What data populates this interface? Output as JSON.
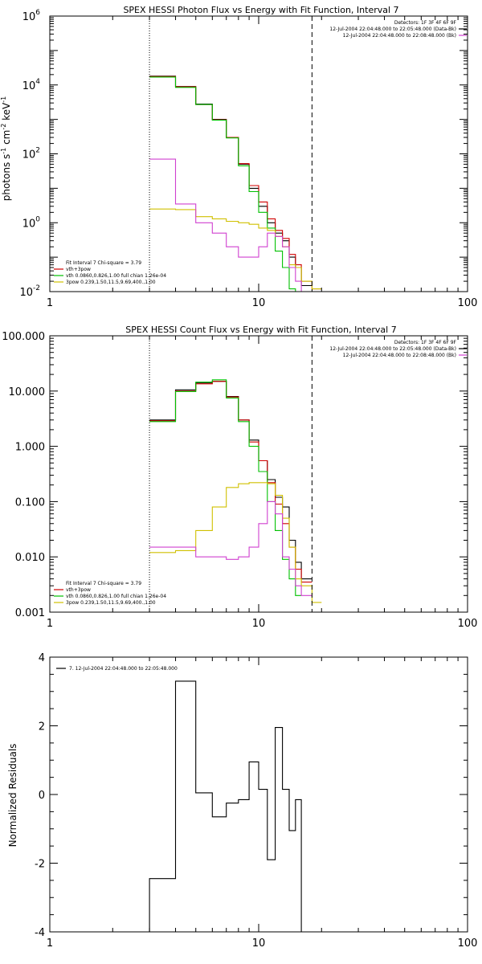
{
  "chart_data": [
    {
      "type": "line",
      "title": "SPEX HESSI Photon Flux vs Energy with Fit Function, Interval 7",
      "xlabel": "",
      "ylabel": "photons s",
      "ylabel_units": [
        "-1",
        " cm",
        "-2",
        " keV",
        "-1"
      ],
      "xscale": "log",
      "yscale": "log",
      "xlim": [
        1,
        100
      ],
      "ylim": [
        0.01,
        1000000
      ],
      "xticks": [
        1,
        10,
        100
      ],
      "xtick_labels": [
        "1",
        "10",
        "100"
      ],
      "yticks": [
        0.01,
        1,
        100,
        10000,
        1000000
      ],
      "ytick_labels": [
        [
          "10",
          "-2"
        ],
        [
          "10",
          "0"
        ],
        [
          "10",
          "2"
        ],
        [
          "10",
          "4"
        ],
        [
          "10",
          "6"
        ]
      ],
      "vlines": [
        {
          "x": 3,
          "style": "dotted"
        },
        {
          "x": 18,
          "style": "dashed"
        }
      ],
      "legend_topright": [
        "Detectors: 1F 3F 4F 6F 9F",
        "12-Jul-2004 22:04:48.000 to 22:05:48.000 (Data-Bk)",
        "12-Jul-2004 22:04:48.000 to 22:08:48.000 (Bk)"
      ],
      "legend_topright_colors": [
        "#000000",
        "#000000",
        "#d040d0"
      ],
      "legend_bottomleft": [
        "Fit Interval  7    Chi-square = 3.79",
        "vth+3pow",
        "vth 0.0860,0.826,1.00  full chian 1.26e-04",
        "3pow 0.239,1.50,11.5,9.69,400.,1.00"
      ],
      "legend_bottomleft_colors": [
        "#000000",
        "#d00000",
        "#00c000",
        "#d0c000"
      ],
      "bin_edges": [
        3,
        4,
        5,
        6,
        7,
        8,
        9,
        10,
        11,
        12,
        13,
        14,
        15,
        16,
        18,
        20
      ],
      "series": [
        {
          "color": "#000000",
          "values": [
            18000,
            9000,
            2800,
            1000,
            300,
            50,
            10,
            3,
            1,
            0.5,
            0.3,
            0.1,
            0.05,
            0.015,
            null
          ]
        },
        {
          "color": "#d00000",
          "values": [
            17500,
            8800,
            2700,
            980,
            300,
            52,
            12,
            4,
            1.3,
            0.6,
            0.35,
            0.12,
            0.06,
            0.02,
            0.012
          ]
        },
        {
          "color": "#00c000",
          "values": [
            17000,
            8500,
            2700,
            950,
            290,
            45,
            8,
            2,
            0.7,
            0.15,
            0.05,
            0.012,
            0.006,
            null,
            null
          ]
        },
        {
          "color": "#d0c000",
          "values": [
            2.5,
            2.4,
            1.5,
            1.3,
            1.1,
            1.0,
            0.9,
            0.7,
            0.6,
            0.4,
            0.2,
            0.06,
            0.05,
            0.02,
            0.012
          ]
        },
        {
          "color": "#d040d0",
          "values": [
            70,
            3.5,
            1.0,
            0.5,
            0.2,
            0.1,
            0.1,
            0.2,
            0.5,
            0.4,
            0.2,
            0.05,
            0.02,
            0.01,
            null
          ]
        }
      ]
    },
    {
      "type": "line",
      "title": "SPEX HESSI Count Flux vs Energy with Fit Function, Interval 7",
      "xlabel": "",
      "ylabel": "",
      "xscale": "log",
      "yscale": "log",
      "xlim": [
        1,
        100
      ],
      "ylim": [
        0.001,
        100
      ],
      "xticks": [
        1,
        10,
        100
      ],
      "xtick_labels": [
        "1",
        "10",
        "100"
      ],
      "yticks": [
        0.001,
        0.01,
        0.1,
        1,
        10,
        100
      ],
      "ytick_labels": [
        "0.001",
        "0.010",
        "0.100",
        "1.000",
        "10.000",
        "100.000"
      ],
      "vlines": [
        {
          "x": 3,
          "style": "dotted"
        },
        {
          "x": 18,
          "style": "dashed"
        }
      ],
      "legend_topright": [
        "Detectors: 1F 3F 4F 6F 9F",
        "12-Jul-2004 22:04:48.000 to 22:05:48.000 (Data-Bk)",
        "12-Jul-2004 22:04:48.000 to 22:08:48.000 (Bk)"
      ],
      "legend_topright_colors": [
        "#000000",
        "#000000",
        "#d040d0"
      ],
      "legend_bottomleft": [
        "Fit Interval  7    Chi-square = 3.79",
        "vth+3pow",
        "vth 0.0860,0.826,1.00  full chian 1.26e-04",
        "3pow 0.239,1.50,11.5,9.69,400.,1.00"
      ],
      "legend_bottomleft_colors": [
        "#000000",
        "#d00000",
        "#00c000",
        "#d0c000"
      ],
      "bin_edges": [
        3,
        4,
        5,
        6,
        7,
        8,
        9,
        10,
        11,
        12,
        13,
        14,
        15,
        16,
        18,
        20
      ],
      "series": [
        {
          "color": "#000000",
          "values": [
            3.0,
            10.5,
            14.0,
            15.0,
            8.0,
            3.0,
            1.3,
            0.55,
            0.25,
            0.12,
            0.08,
            0.02,
            0.008,
            0.004,
            null
          ]
        },
        {
          "color": "#d00000",
          "values": [
            2.9,
            10.0,
            13.5,
            15.0,
            7.8,
            3.0,
            1.2,
            0.55,
            0.22,
            0.09,
            0.04,
            0.015,
            0.006,
            0.0035,
            null
          ]
        },
        {
          "color": "#00c000",
          "values": [
            2.8,
            9.8,
            14.5,
            16.0,
            7.5,
            2.8,
            1.0,
            0.35,
            0.1,
            0.03,
            0.009,
            0.004,
            0.002,
            null,
            null
          ]
        },
        {
          "color": "#d0c000",
          "values": [
            0.012,
            0.013,
            0.03,
            0.08,
            0.18,
            0.21,
            0.22,
            0.22,
            0.21,
            0.13,
            0.05,
            0.015,
            0.004,
            0.003,
            0.0015
          ]
        },
        {
          "color": "#d040d0",
          "values": [
            0.015,
            0.015,
            0.01,
            0.01,
            0.009,
            0.01,
            0.015,
            0.04,
            0.1,
            0.06,
            0.01,
            0.006,
            0.003,
            0.002,
            null
          ]
        }
      ]
    },
    {
      "type": "line",
      "title": "",
      "xlabel": "",
      "ylabel": "Normalized Residuals",
      "xscale": "log",
      "yscale": "linear",
      "xlim": [
        1,
        100
      ],
      "ylim": [
        -4,
        4
      ],
      "xticks": [
        1,
        10,
        100
      ],
      "xtick_labels": [
        "1",
        "10",
        "100"
      ],
      "yticks": [
        -4,
        -2,
        0,
        2,
        4
      ],
      "ytick_labels": [
        "-4",
        "-2",
        "0",
        "2",
        "4"
      ],
      "legend": [
        "7. 12-Jul-2004 22:04:48.000 to 22:05:48.000"
      ],
      "bin_edges": [
        3,
        4,
        5,
        6,
        7,
        8,
        9,
        10,
        11,
        12,
        13,
        14,
        15,
        16,
        18
      ],
      "series": [
        {
          "color": "#000000",
          "values": [
            -2.45,
            3.3,
            0.05,
            -0.65,
            -0.25,
            -0.15,
            0.95,
            0.15,
            -1.9,
            1.95,
            0.15,
            -1.05,
            -0.15,
            -4.0
          ]
        }
      ]
    }
  ]
}
